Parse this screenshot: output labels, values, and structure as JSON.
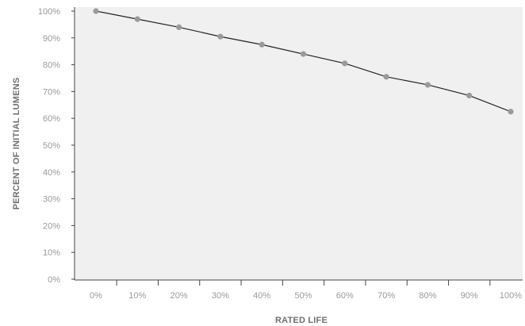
{
  "chart_data": {
    "type": "line",
    "xlabel": "RATED LIFE",
    "ylabel": "PERCENT OF INITIAL LUMENS",
    "x_tick_labels": [
      "0%",
      "10%",
      "20%",
      "30%",
      "40%",
      "50%",
      "60%",
      "70%",
      "80%",
      "90%",
      "100%"
    ],
    "y_tick_labels": [
      "0%",
      "10%",
      "20%",
      "30%",
      "40%",
      "50%",
      "60%",
      "70%",
      "80%",
      "90%",
      "100%"
    ],
    "x": [
      0,
      10,
      20,
      30,
      40,
      50,
      60,
      70,
      80,
      90,
      100
    ],
    "series": [
      {
        "values": [
          100,
          97,
          94,
          90.5,
          87.5,
          84,
          80.5,
          75.5,
          72.5,
          68.5,
          62.5
        ]
      }
    ],
    "xlim": [
      0,
      100
    ],
    "ylim": [
      0,
      100
    ],
    "grid": false,
    "colors": {
      "plot_background": "#f0f0f0",
      "line": "#222222",
      "marker": "#9a9a9a",
      "axis": "#444444"
    }
  }
}
